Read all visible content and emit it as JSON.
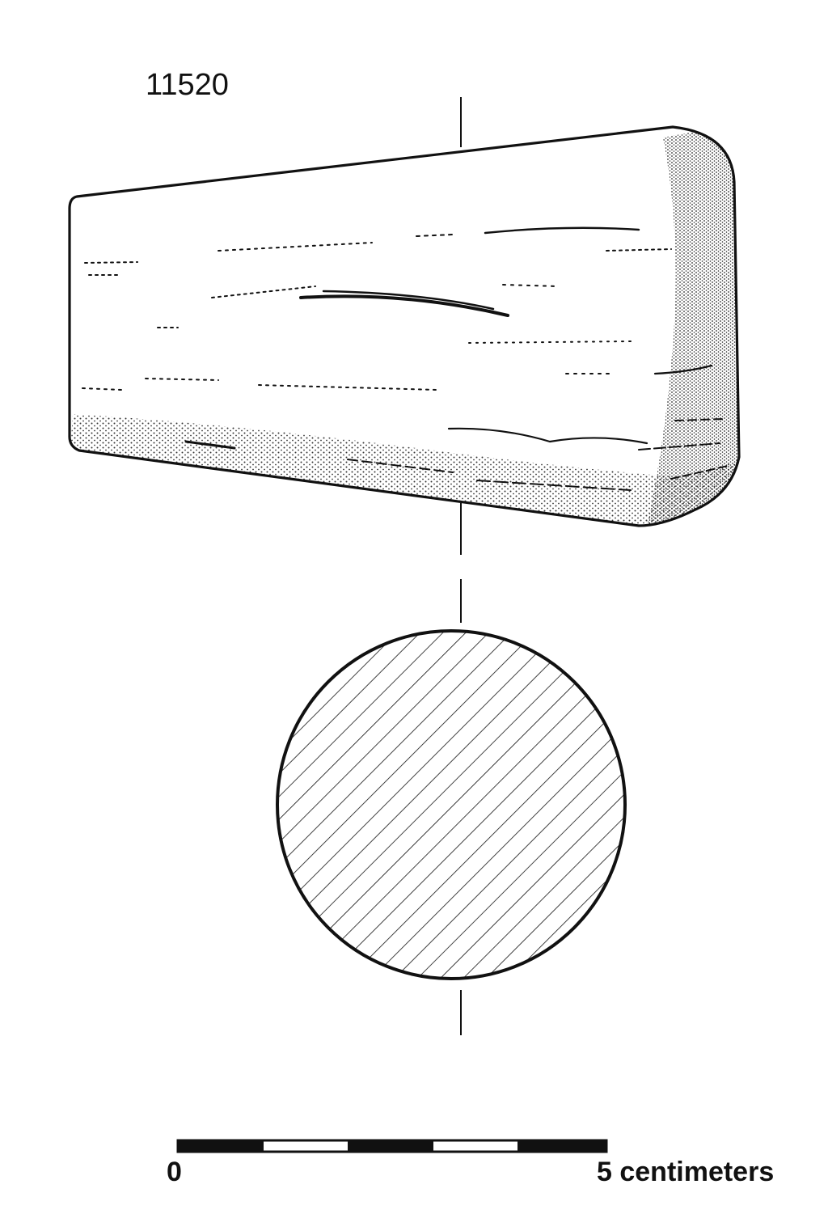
{
  "figure": {
    "catalog_number": "11520"
  },
  "scale_bar": {
    "start_label": "0",
    "end_label": "5 centimeters",
    "segments": 5
  },
  "colors": {
    "ink": "#111111",
    "paper": "#ffffff"
  }
}
